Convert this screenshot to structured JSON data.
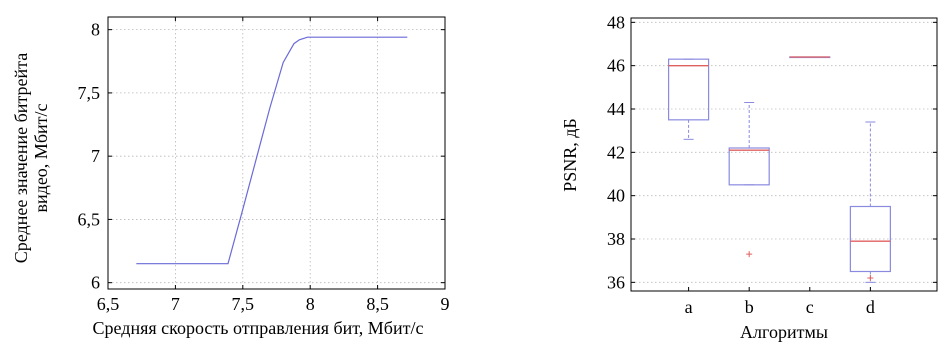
{
  "chart_data": [
    {
      "type": "line",
      "xlabel": "Средняя скорость отправления бит, Мбит/с",
      "ylabel_line1": "Среднее значение битрейта",
      "ylabel_line2": "видео, Мбит/с",
      "xlim": [
        6.5,
        9
      ],
      "ylim": [
        5.95,
        8.1
      ],
      "grid": true,
      "x_ticks": [
        6.5,
        7,
        7.5,
        8,
        8.5,
        9
      ],
      "x_tick_labels": [
        "6,5",
        "7",
        "7,5",
        "8",
        "8,5",
        "9"
      ],
      "y_ticks": [
        6,
        6.5,
        7,
        7.5,
        8
      ],
      "y_tick_labels": [
        "6",
        "6,5",
        "7",
        "7,5",
        "8"
      ],
      "line_color": "#6a6ad8",
      "series": [
        {
          "x": [
            6.71,
            7.39,
            7.5,
            7.6,
            7.7,
            7.8,
            7.88,
            7.92,
            7.98,
            8.72
          ],
          "y": [
            6.15,
            6.15,
            6.58,
            6.98,
            7.38,
            7.74,
            7.89,
            7.92,
            7.94,
            7.94
          ]
        }
      ]
    },
    {
      "type": "box",
      "ylabel": "PSNR, дБ",
      "xlabel": "Алгоритмы",
      "categories": [
        "a",
        "b",
        "c",
        "d"
      ],
      "ylim": [
        35.6,
        48.2
      ],
      "y_ticks": [
        36,
        38,
        40,
        42,
        44,
        46,
        48
      ],
      "y_tick_labels": [
        "36",
        "38",
        "40",
        "42",
        "44",
        "46",
        "48"
      ],
      "grid": true,
      "box_color": "#8a8ae0",
      "median_color": "#e06060",
      "outlier_color": "#e06060",
      "boxes": [
        {
          "whisker_low": 42.6,
          "q1": 43.5,
          "median": 46.0,
          "q3": 46.3,
          "whisker_high": 46.3,
          "outliers": []
        },
        {
          "whisker_low": 40.5,
          "q1": 40.5,
          "median": 42.1,
          "q3": 42.2,
          "whisker_high": 44.3,
          "outliers": [
            37.3
          ]
        },
        {
          "whisker_low": 46.4,
          "q1": 46.4,
          "median": 46.4,
          "q3": 46.4,
          "whisker_high": 46.4,
          "outliers": []
        },
        {
          "whisker_low": 36.0,
          "q1": 36.5,
          "median": 37.9,
          "q3": 39.5,
          "whisker_high": 43.4,
          "outliers": [
            36.2
          ]
        }
      ]
    }
  ]
}
